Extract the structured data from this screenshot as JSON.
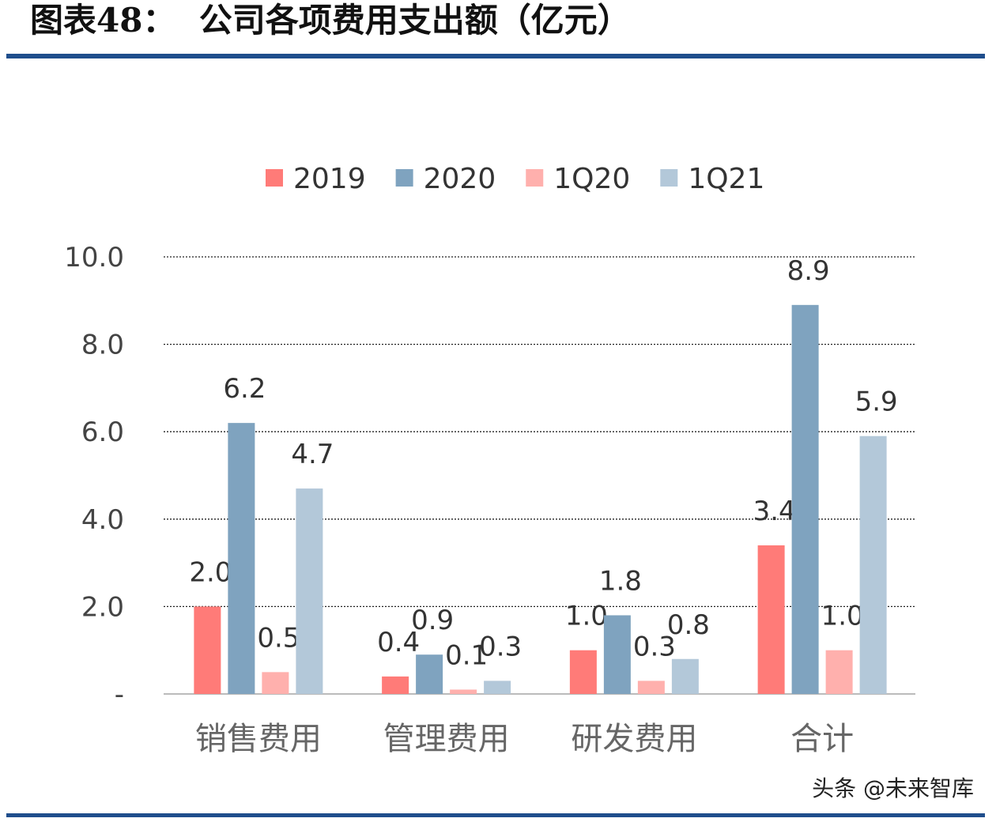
{
  "header": {
    "title": "图表48：  公司各项费用支出额（亿元）"
  },
  "watermark": "头条 @未来智库",
  "chart_data": {
    "type": "bar",
    "title": "",
    "xlabel": "",
    "ylabel": "",
    "ylim": [
      0,
      10
    ],
    "yticks": [
      0,
      2,
      4,
      6,
      8,
      10
    ],
    "ytick_labels": [
      "-",
      "2.0",
      "4.0",
      "6.0",
      "8.0",
      "10.0"
    ],
    "grid": true,
    "legend": "top",
    "categories": [
      "销售费用",
      "管理费用",
      "研发费用",
      "合计"
    ],
    "series": [
      {
        "name": "2019",
        "color": "#FF7B78",
        "values": [
          2.0,
          0.4,
          1.0,
          3.4
        ]
      },
      {
        "name": "2020",
        "color": "#7FA3BF",
        "values": [
          6.2,
          0.9,
          1.8,
          8.9
        ]
      },
      {
        "name": "1Q20",
        "color": "#FFB0AD",
        "values": [
          0.5,
          0.1,
          0.3,
          1.0
        ]
      },
      {
        "name": "1Q21",
        "color": "#B3C8D9",
        "values": [
          4.7,
          0.3,
          0.8,
          5.9
        ]
      }
    ]
  }
}
